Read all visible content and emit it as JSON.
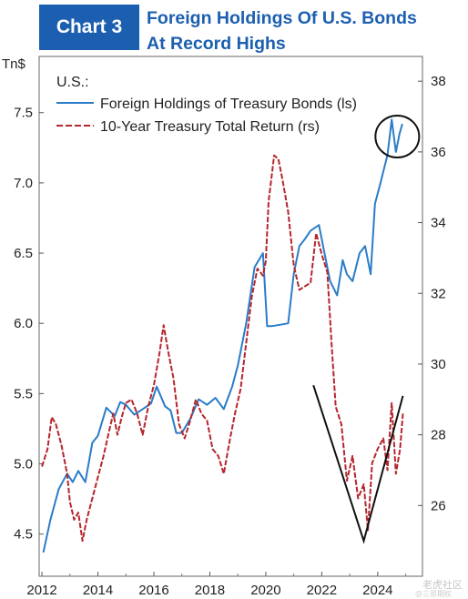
{
  "header": {
    "tag": "Chart 3",
    "title_line1": "Foreign Holdings Of U.S. Bonds",
    "title_line2": "At Record Highs"
  },
  "watermark": {
    "text": "老虎社区",
    "subtext": "@三思期权"
  },
  "chart_data": {
    "type": "line",
    "title": "Foreign Holdings Of U.S. Bonds At Record Highs",
    "left_axis": {
      "unit_label": "Tn$",
      "ylim": [
        4.2,
        7.9
      ],
      "ticks": [
        4.5,
        5.0,
        5.5,
        6.0,
        6.5,
        7.0,
        7.5
      ]
    },
    "right_axis": {
      "ylim": [
        24.0,
        38.7
      ],
      "ticks": [
        26,
        28,
        30,
        32,
        34,
        36,
        38
      ]
    },
    "x_axis": {
      "xlim": [
        2011.9,
        2025.6
      ],
      "ticks": [
        2012,
        2014,
        2016,
        2018,
        2020,
        2022,
        2024
      ]
    },
    "legend": {
      "title": "U.S.:",
      "position": "top-left"
    },
    "series": [
      {
        "name": "Foreign Holdings of Treasury Bonds (ls)",
        "axis": "left",
        "color": "#2a7cc9",
        "style": "solid",
        "x": [
          2012.05,
          2012.3,
          2012.6,
          2012.9,
          2013.1,
          2013.3,
          2013.55,
          2013.8,
          2014.0,
          2014.3,
          2014.6,
          2014.8,
          2015.0,
          2015.3,
          2015.6,
          2015.9,
          2016.1,
          2016.4,
          2016.6,
          2016.8,
          2017.0,
          2017.3,
          2017.6,
          2017.9,
          2018.2,
          2018.5,
          2018.8,
          2019.0,
          2019.3,
          2019.6,
          2019.9,
          2020.05,
          2020.2,
          2020.5,
          2020.8,
          2021.0,
          2021.2,
          2021.4,
          2021.6,
          2021.9,
          2022.1,
          2022.3,
          2022.55,
          2022.75,
          2022.9,
          2023.1,
          2023.35,
          2023.55,
          2023.75,
          2023.9,
          2024.1,
          2024.35,
          2024.5,
          2024.65,
          2024.78,
          2024.88
        ],
        "values": [
          4.37,
          4.6,
          4.82,
          4.93,
          4.87,
          4.95,
          4.87,
          5.15,
          5.2,
          5.4,
          5.34,
          5.44,
          5.42,
          5.35,
          5.39,
          5.43,
          5.55,
          5.41,
          5.38,
          5.22,
          5.22,
          5.32,
          5.46,
          5.42,
          5.47,
          5.39,
          5.55,
          5.7,
          6.0,
          6.4,
          6.5,
          5.98,
          5.98,
          5.99,
          6.0,
          6.35,
          6.55,
          6.6,
          6.66,
          6.7,
          6.5,
          6.3,
          6.2,
          6.45,
          6.35,
          6.3,
          6.5,
          6.55,
          6.35,
          6.85,
          7.0,
          7.2,
          7.45,
          7.22,
          7.35,
          7.42
        ]
      },
      {
        "name": "10-Year Treasury Total Return (rs)",
        "axis": "right",
        "color": "#b5262d",
        "style": "dashed",
        "x": [
          2012.0,
          2012.2,
          2012.35,
          2012.5,
          2012.7,
          2012.9,
          2013.0,
          2013.15,
          2013.3,
          2013.45,
          2013.6,
          2013.8,
          2014.0,
          2014.2,
          2014.4,
          2014.55,
          2014.7,
          2014.85,
          2015.0,
          2015.2,
          2015.4,
          2015.6,
          2015.8,
          2016.0,
          2016.2,
          2016.35,
          2016.5,
          2016.7,
          2016.9,
          2017.1,
          2017.3,
          2017.5,
          2017.7,
          2017.9,
          2018.1,
          2018.3,
          2018.5,
          2018.7,
          2018.9,
          2019.1,
          2019.3,
          2019.5,
          2019.7,
          2019.9,
          2020.0,
          2020.1,
          2020.3,
          2020.45,
          2020.6,
          2020.8,
          2021.0,
          2021.2,
          2021.4,
          2021.6,
          2021.8,
          2022.0,
          2022.2,
          2022.35,
          2022.5,
          2022.7,
          2022.9,
          2023.1,
          2023.3,
          2023.5,
          2023.65,
          2023.8,
          2024.0,
          2024.2,
          2024.35,
          2024.5,
          2024.65,
          2024.8,
          2024.9
        ],
        "values": [
          27.1,
          27.6,
          28.5,
          28.3,
          27.7,
          26.9,
          26.1,
          25.6,
          25.8,
          25.0,
          25.6,
          26.2,
          26.8,
          27.4,
          28.1,
          28.6,
          28.0,
          28.5,
          28.9,
          29.0,
          28.6,
          28.0,
          28.8,
          29.4,
          30.3,
          31.1,
          30.4,
          29.6,
          28.3,
          27.9,
          28.4,
          29.0,
          28.6,
          28.4,
          27.6,
          27.4,
          26.9,
          27.8,
          28.6,
          29.3,
          30.6,
          31.9,
          32.7,
          32.5,
          32.9,
          34.6,
          35.9,
          35.8,
          35.2,
          34.3,
          32.8,
          32.1,
          32.2,
          32.3,
          33.7,
          33.1,
          32.6,
          30.6,
          28.8,
          28.3,
          26.7,
          27.4,
          26.2,
          26.6,
          25.3,
          27.2,
          27.6,
          27.9,
          27.0,
          28.9,
          26.9,
          27.6,
          28.6
        ]
      }
    ],
    "annotations": [
      {
        "type": "circle",
        "note": "record high",
        "x": 2024.7,
        "y_left": 7.33
      },
      {
        "type": "v-shape",
        "points": [
          [
            2021.7,
            29.4
          ],
          [
            2023.5,
            25.0
          ],
          [
            2024.9,
            29.1
          ]
        ],
        "axis": "right"
      }
    ],
    "grid": false
  }
}
